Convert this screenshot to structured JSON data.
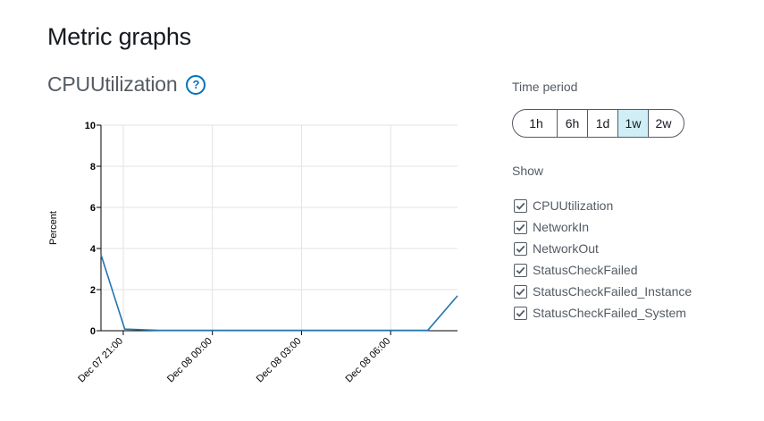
{
  "page": {
    "title": "Metric graphs"
  },
  "metric": {
    "title": "CPUUtilization",
    "help_symbol": "?"
  },
  "time_period": {
    "label": "Time period",
    "options": [
      "1h",
      "6h",
      "1d",
      "1w",
      "2w"
    ],
    "selected": "1w"
  },
  "show": {
    "label": "Show",
    "items": [
      {
        "label": "CPUUtilization",
        "checked": true
      },
      {
        "label": "NetworkIn",
        "checked": true
      },
      {
        "label": "NetworkOut",
        "checked": true
      },
      {
        "label": "StatusCheckFailed",
        "checked": true
      },
      {
        "label": "StatusCheckFailed_Instance",
        "checked": true
      },
      {
        "label": "StatusCheckFailed_System",
        "checked": true
      }
    ]
  },
  "chart_data": {
    "type": "line",
    "ylabel": "Percent",
    "ylim": [
      0,
      10
    ],
    "yticks": [
      0,
      2,
      4,
      6,
      8,
      10
    ],
    "xtick_labels": [
      "Dec 07 21:00",
      "Dec 08 00:00",
      "Dec 08 03:00",
      "Dec 08 06:00"
    ],
    "xtick_hours": [
      0,
      3,
      6,
      9
    ],
    "xlim_hours": [
      -0.75,
      11.25
    ],
    "grid": true,
    "colors": {
      "line": "#1f77b4",
      "grid": "#e3e3e3",
      "axis": "#000000"
    },
    "series": [
      {
        "x_hours": [
          -0.75,
          0.05,
          1.2,
          10.25,
          11.25
        ],
        "y": [
          3.7,
          0.08,
          0.02,
          0.02,
          1.7
        ]
      }
    ]
  }
}
